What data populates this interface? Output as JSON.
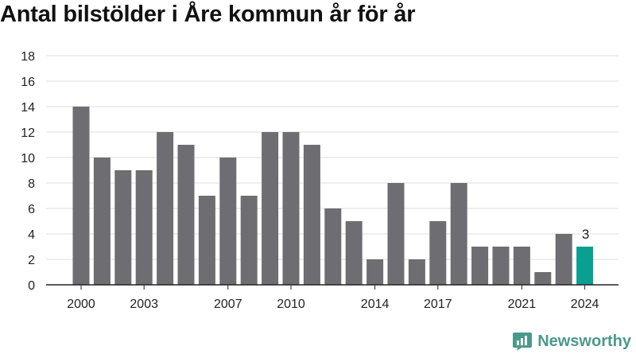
{
  "title": "Antal bilstölder i Åre kommun år för år",
  "brand": {
    "name": "Newsworthy",
    "icon": "chart-bubble-icon",
    "color": "#4a9a8a"
  },
  "colors": {
    "bar": "#6e6d72",
    "highlight": "#0aa091",
    "grid": "#dddddd",
    "axis": "#222222"
  },
  "chart_data": {
    "type": "bar",
    "title": "Antal bilstölder i Åre kommun år för år",
    "xlabel": "",
    "ylabel": "",
    "categories": [
      "2000",
      "2001",
      "2002",
      "2003",
      "2004",
      "2005",
      "2006",
      "2007",
      "2008",
      "2009",
      "2010",
      "2011",
      "2012",
      "2013",
      "2014",
      "2015",
      "2016",
      "2017",
      "2018",
      "2019",
      "2020",
      "2021",
      "2022",
      "2023",
      "2024"
    ],
    "values": [
      14,
      10,
      9,
      9,
      12,
      11,
      7,
      10,
      7,
      12,
      12,
      11,
      6,
      5,
      2,
      8,
      2,
      5,
      8,
      3,
      3,
      3,
      1,
      4,
      3
    ],
    "highlight_index": 24,
    "ylim": [
      0,
      18
    ],
    "yticks": [
      0,
      2,
      4,
      6,
      8,
      10,
      12,
      14,
      16,
      18
    ],
    "xtick_labels": [
      "2000",
      "2003",
      "2007",
      "2010",
      "2014",
      "2017",
      "2021",
      "2024"
    ],
    "data_labels": [
      {
        "category": "2024",
        "value": "3"
      }
    ],
    "grid": true,
    "legend": "none"
  }
}
